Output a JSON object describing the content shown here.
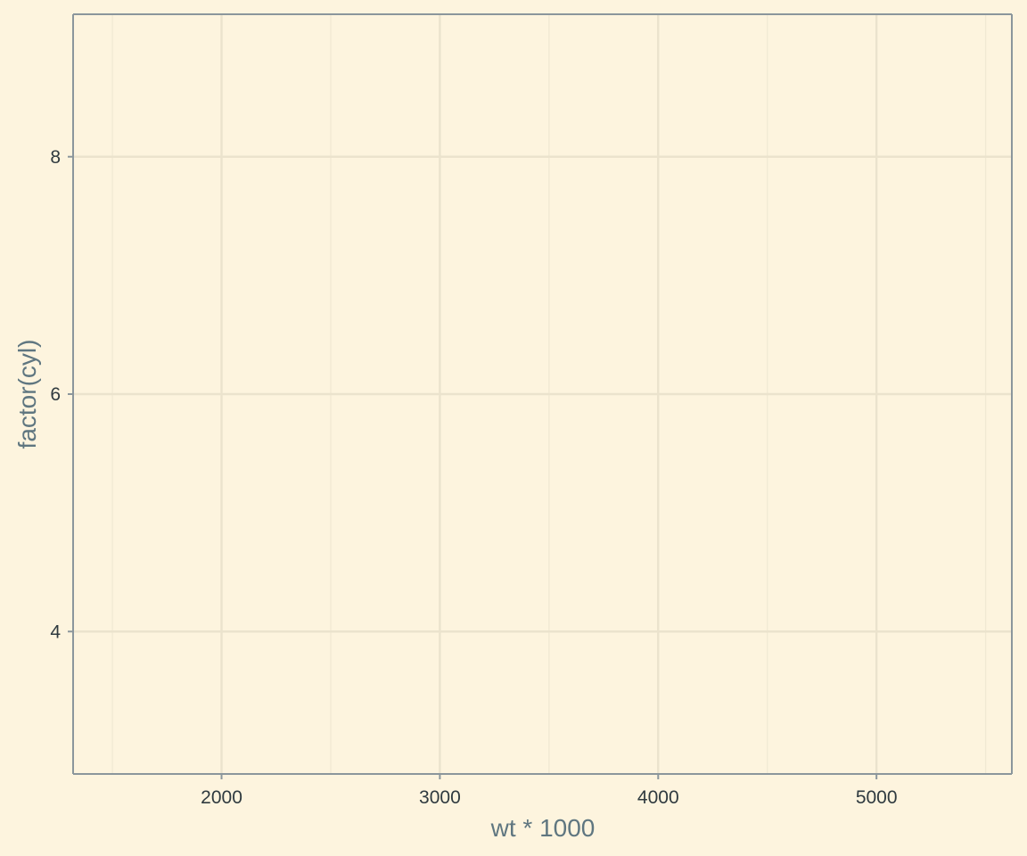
{
  "chart_data": {
    "type": "scatter",
    "title": "",
    "xlabel": "wt * 1000",
    "ylabel": "factor(cyl)",
    "xlim": [
      1320,
      5620
    ],
    "ylim": [
      2.8,
      9.2
    ],
    "x_ticks": [
      2000,
      3000,
      4000,
      5000
    ],
    "x_minor": [
      1500,
      2500,
      3500,
      4500,
      5500
    ],
    "y_ticks": [
      4,
      6,
      8
    ],
    "y_tick_labels": [
      "4",
      "6",
      "8"
    ],
    "series": [],
    "grid": true,
    "legend": "none",
    "colors": {
      "background": "#fdf4de",
      "grid_major": "#ebe3cd",
      "grid_minor": "#f1e9d3",
      "axis_line": "#8b969c",
      "tick_text": "#2f3a3f",
      "title_text": "#5f7680"
    }
  }
}
